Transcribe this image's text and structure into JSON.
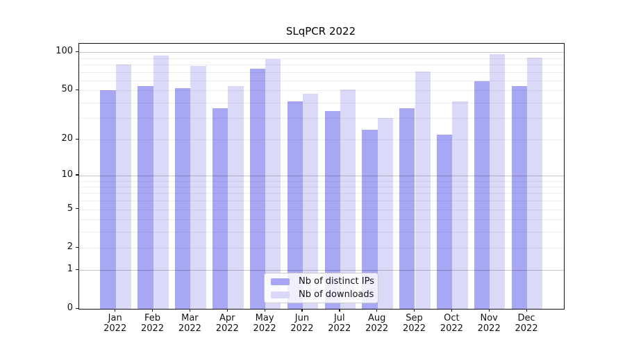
{
  "chart_data": {
    "type": "bar",
    "title": "SLqPCR 2022",
    "categories": [
      "Jan",
      "Feb",
      "Mar",
      "Apr",
      "May",
      "Jun",
      "Jul",
      "Aug",
      "Sep",
      "Oct",
      "Nov",
      "Dec"
    ],
    "x_year": "2022",
    "series": [
      {
        "name": "Nb of distinct IPs",
        "color": "#a7a7f3",
        "values": [
          50,
          54,
          52,
          36,
          74,
          41,
          34,
          24,
          36,
          22,
          59,
          54
        ]
      },
      {
        "name": "Nb of downloads",
        "color": "#dadaf8",
        "values": [
          80,
          94,
          78,
          54,
          89,
          47,
          51,
          30,
          71,
          41,
          97,
          91
        ]
      }
    ],
    "xlabel": "",
    "ylabel": "",
    "yticks": [
      0,
      1,
      2,
      5,
      10,
      20,
      50,
      100
    ],
    "minor_grid_values": [
      2,
      3,
      4,
      5,
      6,
      7,
      8,
      9,
      20,
      30,
      40,
      50,
      60,
      70,
      80,
      90
    ],
    "major_grid_values": [
      1,
      10,
      100
    ],
    "scale": "log1p",
    "ylim": [
      0,
      117
    ],
    "grid": true,
    "legend_position": "lower center",
    "axis_color": "#111111",
    "background_color": "#ffffff"
  }
}
